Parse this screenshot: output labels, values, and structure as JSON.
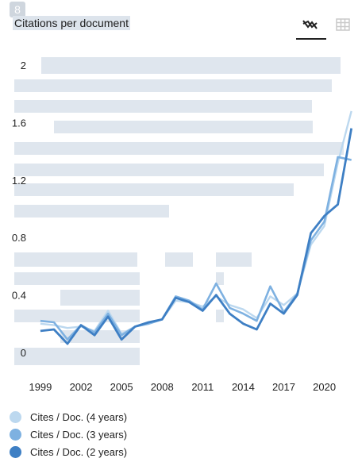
{
  "badge": "8",
  "title": "Citations per document",
  "toolbar": {
    "line_icon": "line-chart-icon",
    "table_icon": "table-icon"
  },
  "colors": {
    "four_year": "#bcd8ef",
    "three_year": "#7eb1e1",
    "two_year": "#3e7fc4",
    "highlight": "#dfe6ee"
  },
  "chart_data": {
    "type": "line",
    "x": [
      1999,
      2000,
      2001,
      2002,
      2003,
      2004,
      2005,
      2006,
      2007,
      2008,
      2009,
      2010,
      2011,
      2012,
      2013,
      2014,
      2015,
      2016,
      2017,
      2018,
      2019,
      2020,
      2021,
      2022
    ],
    "ylim": [
      -0.1,
      2.1
    ],
    "yticks": [
      0,
      0.4,
      0.8,
      1.2,
      1.6,
      2
    ],
    "ytick_labels": [
      "0",
      "0.4",
      "0.8",
      "1.2",
      "1.6",
      "2"
    ],
    "xtick_labels": [
      "1999",
      "2002",
      "2005",
      "2008",
      "2011",
      "2014",
      "2017",
      "2020"
    ],
    "xticks": [
      1999,
      2002,
      2005,
      2008,
      2011,
      2014,
      2017,
      2020
    ],
    "xlim": [
      1998,
      2023
    ],
    "grid": false,
    "series": [
      {
        "name": "Cites / Doc. (4 years)",
        "color": "#bcd8ef",
        "values": [
          0.2,
          0.19,
          0.17,
          0.18,
          0.15,
          0.29,
          0.13,
          0.18,
          0.2,
          0.23,
          0.36,
          0.35,
          0.32,
          0.39,
          0.33,
          0.3,
          0.24,
          0.39,
          0.33,
          0.41,
          0.75,
          0.88,
          1.32,
          1.68
        ]
      },
      {
        "name": "Cites / Doc. (3 years)",
        "color": "#7eb1e1",
        "values": [
          0.22,
          0.21,
          0.09,
          0.19,
          0.14,
          0.27,
          0.12,
          0.18,
          0.2,
          0.23,
          0.39,
          0.36,
          0.3,
          0.48,
          0.31,
          0.27,
          0.22,
          0.46,
          0.28,
          0.41,
          0.78,
          0.91,
          1.36,
          1.34
        ]
      },
      {
        "name": "Cites / Doc. (2 years)",
        "color": "#3e7fc4",
        "values": [
          0.15,
          0.16,
          0.06,
          0.19,
          0.12,
          0.25,
          0.09,
          0.18,
          0.21,
          0.23,
          0.38,
          0.35,
          0.29,
          0.4,
          0.27,
          0.2,
          0.16,
          0.34,
          0.27,
          0.4,
          0.83,
          0.95,
          1.03,
          1.56
        ]
      }
    ]
  }
}
